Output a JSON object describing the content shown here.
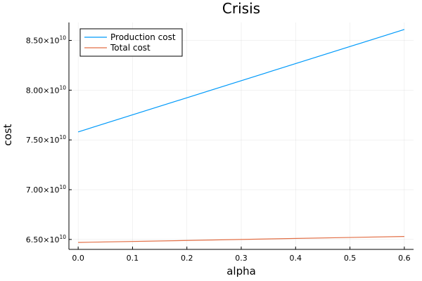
{
  "chart_data": {
    "type": "line",
    "title": "Crisis",
    "xlabel": "alpha",
    "ylabel": "cost",
    "xlim": [
      -0.017,
      0.617
    ],
    "ylim": [
      64000000000,
      86800000000
    ],
    "x_ticks": [
      0,
      0.1,
      0.2,
      0.3,
      0.4,
      0.5,
      0.6
    ],
    "x_tick_labels": [
      "0.0",
      "0.1",
      "0.2",
      "0.3",
      "0.4",
      "0.5",
      "0.6"
    ],
    "y_ticks": [
      65000000000,
      70000000000,
      75000000000,
      80000000000,
      85000000000
    ],
    "y_tick_labels": [
      {
        "mantissa": "6.50",
        "times": "×",
        "base": "10",
        "exponent": "10"
      },
      {
        "mantissa": "7.00",
        "times": "×",
        "base": "10",
        "exponent": "10"
      },
      {
        "mantissa": "7.50",
        "times": "×",
        "base": "10",
        "exponent": "10"
      },
      {
        "mantissa": "8.00",
        "times": "×",
        "base": "10",
        "exponent": "10"
      },
      {
        "mantissa": "8.50",
        "times": "×",
        "base": "10",
        "exponent": "10"
      }
    ],
    "grid": true,
    "legend_position": "top-left",
    "series": [
      {
        "name": "Production cost",
        "color": "#009AFA",
        "x": [
          0,
          0.6
        ],
        "y": [
          75800000000,
          86100000000
        ]
      },
      {
        "name": "Total cost",
        "color": "#E26F46",
        "x": [
          0,
          0.6
        ],
        "y": [
          64700000000,
          65300000000
        ]
      }
    ]
  }
}
